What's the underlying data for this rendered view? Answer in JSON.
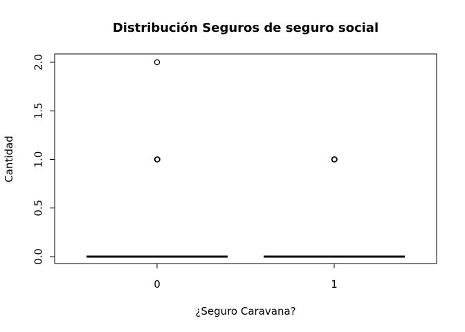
{
  "chart_data": {
    "type": "boxplot",
    "title": "Distribución Seguros de seguro social",
    "xlabel": "¿Seguro Caravana?",
    "ylabel": "Cantidad",
    "categories": [
      "0",
      "1"
    ],
    "ylim": [
      0,
      2
    ],
    "yticks": [
      "0.0",
      "0.5",
      "1.0",
      "1.5",
      "2.0"
    ],
    "boxes": [
      {
        "category": "0",
        "min": 0,
        "q1": 0,
        "median": 0,
        "q3": 0,
        "max": 0,
        "outliers": [
          1,
          2
        ]
      },
      {
        "category": "1",
        "min": 0,
        "q1": 0,
        "median": 0,
        "q3": 0,
        "max": 0,
        "outliers": [
          1
        ]
      }
    ],
    "grid": false,
    "legend": "none",
    "colors": {
      "line": "#000000",
      "background": "#ffffff"
    }
  }
}
